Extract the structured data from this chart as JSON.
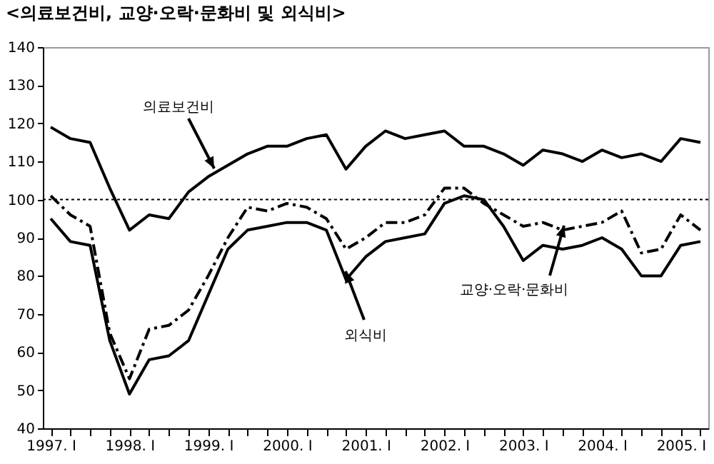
{
  "chart_data": {
    "type": "line",
    "title": "<의료보건비, 교양·오락·문화비 및 외식비>",
    "categories": [
      "1997. Ⅰ",
      null,
      null,
      null,
      "1998. Ⅰ",
      null,
      null,
      null,
      "1999. Ⅰ",
      null,
      null,
      null,
      "2000. Ⅰ",
      null,
      null,
      null,
      "2001. Ⅰ",
      null,
      null,
      null,
      "2002. Ⅰ",
      null,
      null,
      null,
      "2003. Ⅰ",
      null,
      null,
      null,
      "2004. Ⅰ",
      null,
      null,
      null,
      "2005. Ⅰ",
      null
    ],
    "series": [
      {
        "name": "의료보건비",
        "color": "#000000",
        "line_style": "solid",
        "values": [
          119,
          116,
          115,
          103,
          92,
          96,
          95,
          102,
          106,
          109,
          112,
          114,
          114,
          116,
          117,
          108,
          114,
          118,
          116,
          117,
          118,
          114,
          114,
          112,
          109,
          113,
          112,
          110,
          113,
          111,
          112,
          110,
          116,
          115
        ]
      },
      {
        "name": "교양·오락·문화비",
        "color": "#000000",
        "line_style": "dashed",
        "values": [
          101,
          96,
          93,
          65,
          53,
          66,
          67,
          71,
          80,
          90,
          98,
          97,
          99,
          98,
          95,
          87,
          90,
          94,
          94,
          96,
          103,
          103,
          99,
          96,
          93,
          94,
          92,
          93,
          94,
          97,
          86,
          87,
          96,
          92
        ]
      },
      {
        "name": "외식비",
        "color": "#000000",
        "line_style": "solid",
        "values": [
          95,
          89,
          88,
          63,
          49,
          58,
          59,
          63,
          75,
          87,
          92,
          93,
          94,
          94,
          92,
          79,
          85,
          89,
          90,
          91,
          99,
          101,
          100,
          93,
          84,
          88,
          87,
          88,
          90,
          87,
          80,
          80,
          88,
          89
        ]
      }
    ],
    "ylim": [
      40,
      140
    ],
    "yticks": [
      40,
      50,
      60,
      70,
      80,
      90,
      100,
      110,
      120,
      130,
      140
    ],
    "ref_lines": [
      {
        "axis": "y",
        "value": 100,
        "color": "#000000",
        "line_style": "dotted"
      }
    ],
    "grid": false,
    "legend": false,
    "marker": "none"
  }
}
